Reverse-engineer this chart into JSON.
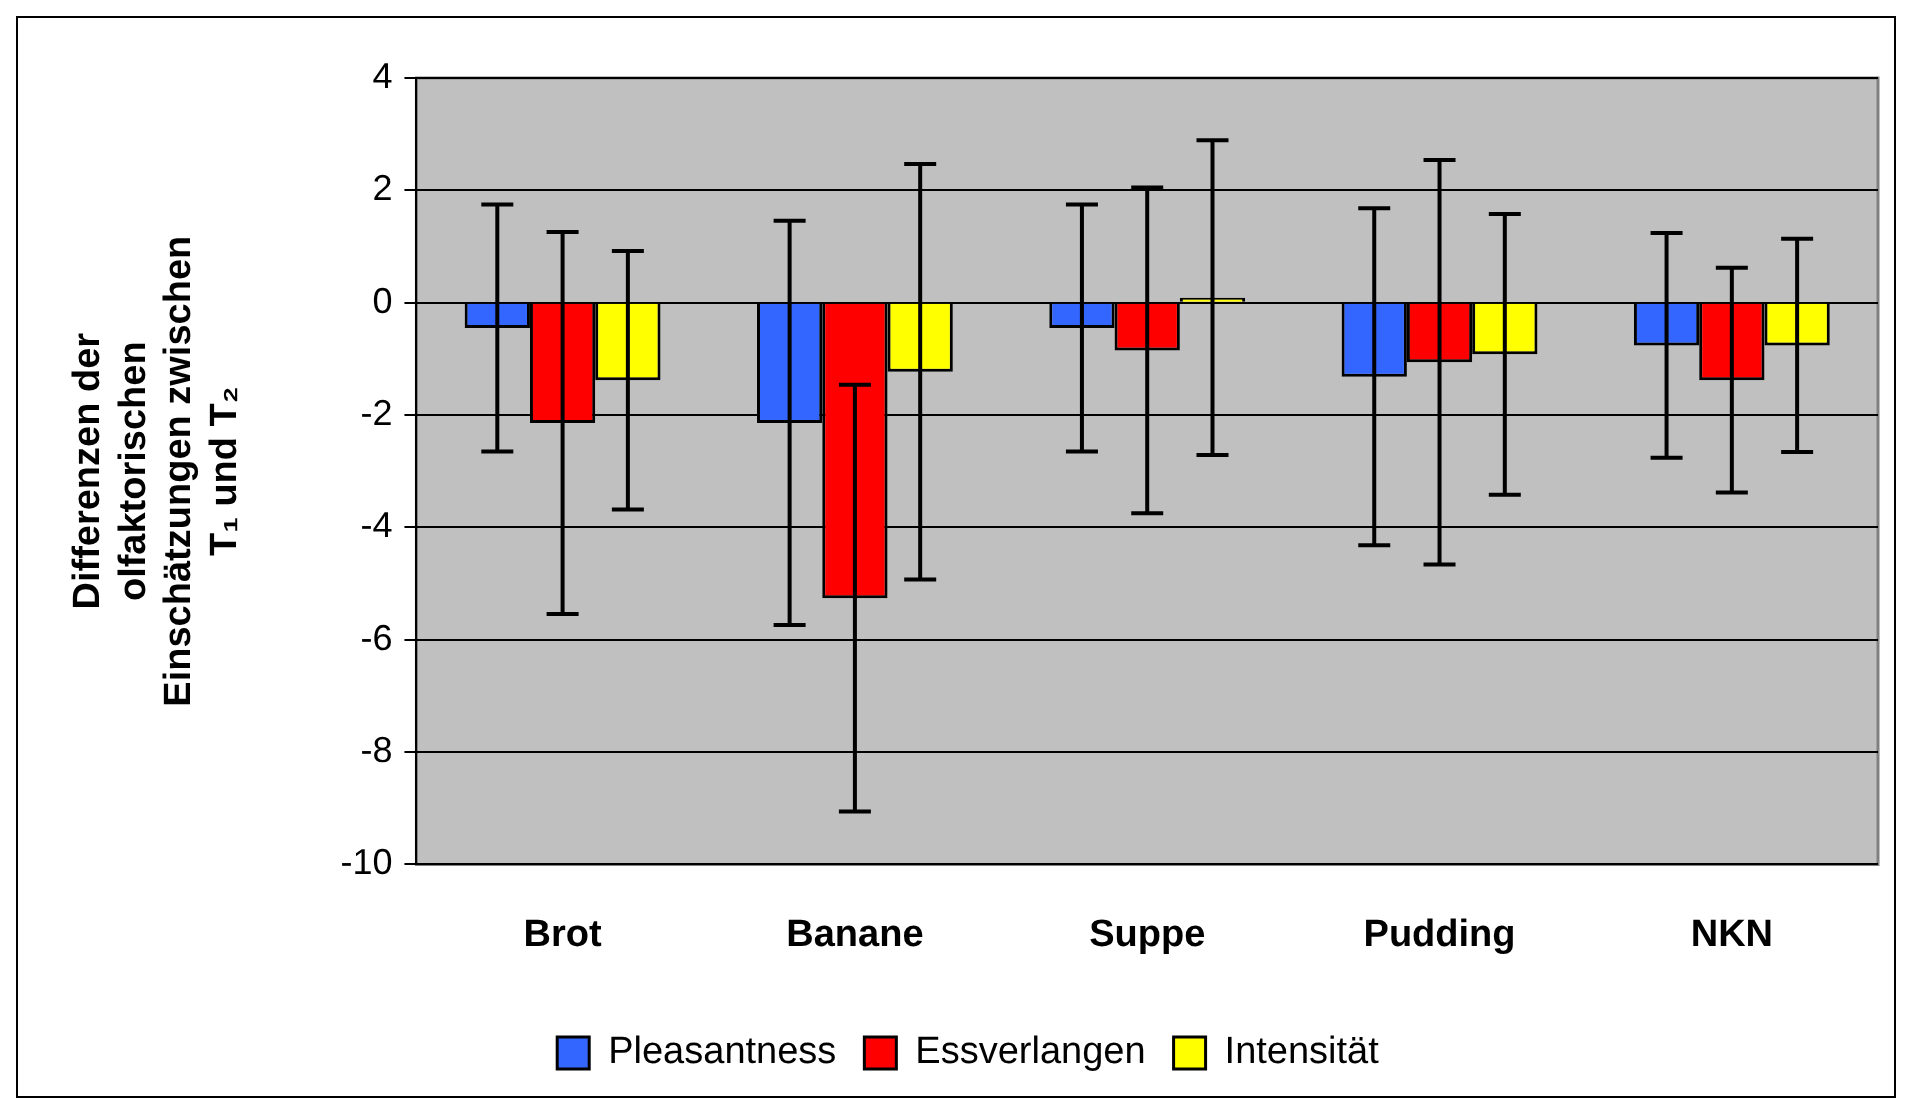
{
  "chart_data": {
    "type": "bar",
    "ylabel": "Differenzen der olfaktorischen Einschätzungen zwischen T₁ und T₂",
    "categories": [
      "Brot",
      "Banane",
      "Suppe",
      "Pudding",
      "NKN"
    ],
    "series": [
      {
        "name": "Pleasantness",
        "color": "#3366ff",
        "values": [
          -0.45,
          -2.14,
          -0.45,
          -1.32,
          -0.76
        ],
        "errors": [
          2.2,
          3.6,
          2.2,
          3.0,
          2.0
        ]
      },
      {
        "name": "Essverlangen",
        "color": "#ff0000",
        "values": [
          -2.14,
          -5.26,
          -0.85,
          -1.06,
          -1.38
        ],
        "errors": [
          3.4,
          3.8,
          2.9,
          3.6,
          2.0
        ]
      },
      {
        "name": "Intensität",
        "color": "#ffff00",
        "values": [
          -1.38,
          -1.23,
          0.09,
          -0.92,
          -0.76
        ],
        "errors": [
          2.3,
          3.7,
          2.8,
          2.5,
          1.9
        ]
      }
    ],
    "ylim": [
      -10,
      4
    ],
    "yticks": [
      -10,
      -8,
      -6,
      -4,
      -2,
      0,
      2,
      4
    ],
    "grid": "y",
    "legend": "bottom"
  }
}
